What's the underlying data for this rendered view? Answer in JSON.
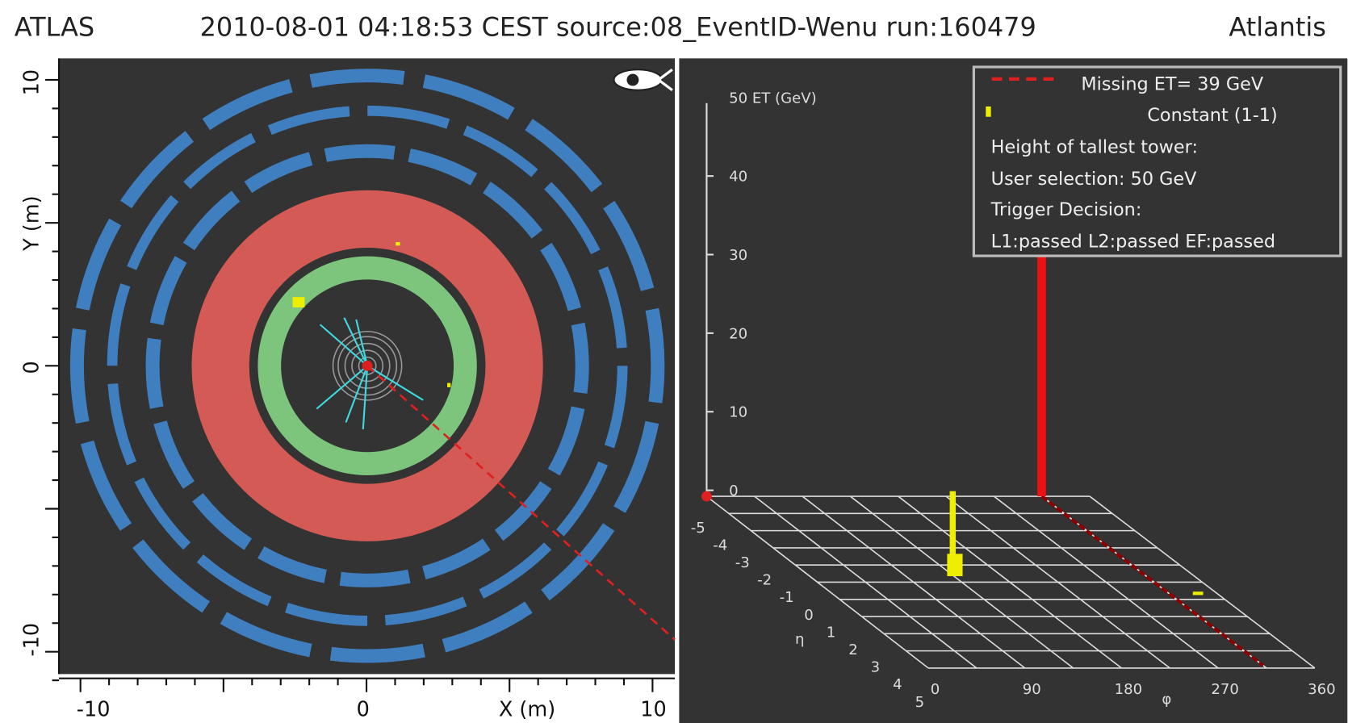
{
  "header": {
    "left": "ATLAS",
    "center": "2010-08-01 04:18:53 CEST source:08_EventID-Wenu run:160479",
    "right": "Atlantis"
  },
  "left_view": {
    "y_label": "Y (m)",
    "x_label": "X (m)",
    "y_ticks": [
      "10",
      "0",
      "-10"
    ],
    "x_ticks": [
      "-10",
      "0",
      "10"
    ]
  },
  "right_view": {
    "et_label": "50 ET (GeV)",
    "et_ticks": [
      "40",
      "30",
      "20",
      "10",
      "0"
    ],
    "eta_label": "η",
    "eta_ticks": [
      "-5",
      "-4",
      "-3",
      "-2",
      "-1",
      "0",
      "1",
      "2",
      "3",
      "4",
      "5"
    ],
    "phi_label": "φ",
    "phi_ticks": [
      "0",
      "90",
      "180",
      "270",
      "360"
    ],
    "legend": [
      "Missing ET= 39 GeV",
      "Constant (1-1)",
      "Height of tallest tower:",
      "User selection: 50 GeV",
      "Trigger Decision:",
      "L1:passed L2:passed EF:passed"
    ]
  }
}
